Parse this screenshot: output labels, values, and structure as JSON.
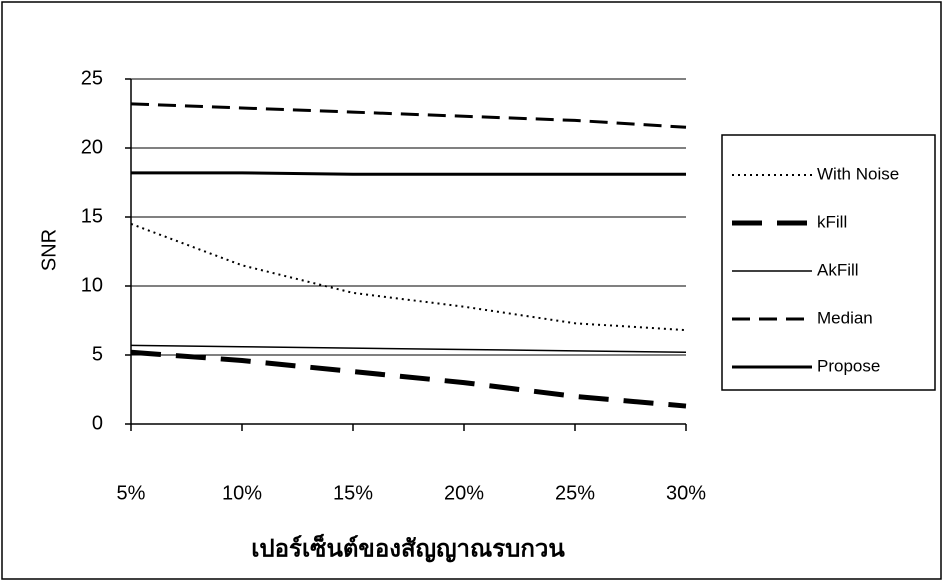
{
  "chart_data": {
    "type": "line",
    "x_label": "เปอร์เซ็นต์ของสัญญาณรบกวน",
    "y_label": "SNR",
    "categories": [
      "5%",
      "10%",
      "15%",
      "20%",
      "25%",
      "30%"
    ],
    "series": [
      {
        "name": "With Noise",
        "color": "#000000",
        "line_style": "dotted",
        "line_width": 2,
        "values": [
          14.5,
          11.5,
          9.5,
          8.5,
          7.3,
          6.8
        ]
      },
      {
        "name": "kFill",
        "color": "#000000",
        "line_style": "dashed",
        "line_width": 5,
        "values": [
          5.2,
          4.6,
          3.8,
          3.0,
          2.0,
          1.3
        ]
      },
      {
        "name": "AkFill",
        "color": "#000000",
        "line_style": "solid",
        "line_width": 1.5,
        "values": [
          5.7,
          5.6,
          5.5,
          5.4,
          5.3,
          5.2
        ]
      },
      {
        "name": "Median",
        "color": "#000000",
        "line_style": "dashed",
        "line_width": 3,
        "values": [
          23.2,
          22.9,
          22.6,
          22.3,
          22.0,
          21.5
        ]
      },
      {
        "name": "Propose",
        "color": "#000000",
        "line_style": "solid",
        "line_width": 3,
        "values": [
          18.2,
          18.2,
          18.1,
          18.1,
          18.1,
          18.1
        ]
      }
    ],
    "ylim": [
      0,
      25
    ],
    "yticks": [
      0,
      5,
      10,
      15,
      20,
      25
    ],
    "grid": true,
    "legend": "right"
  }
}
